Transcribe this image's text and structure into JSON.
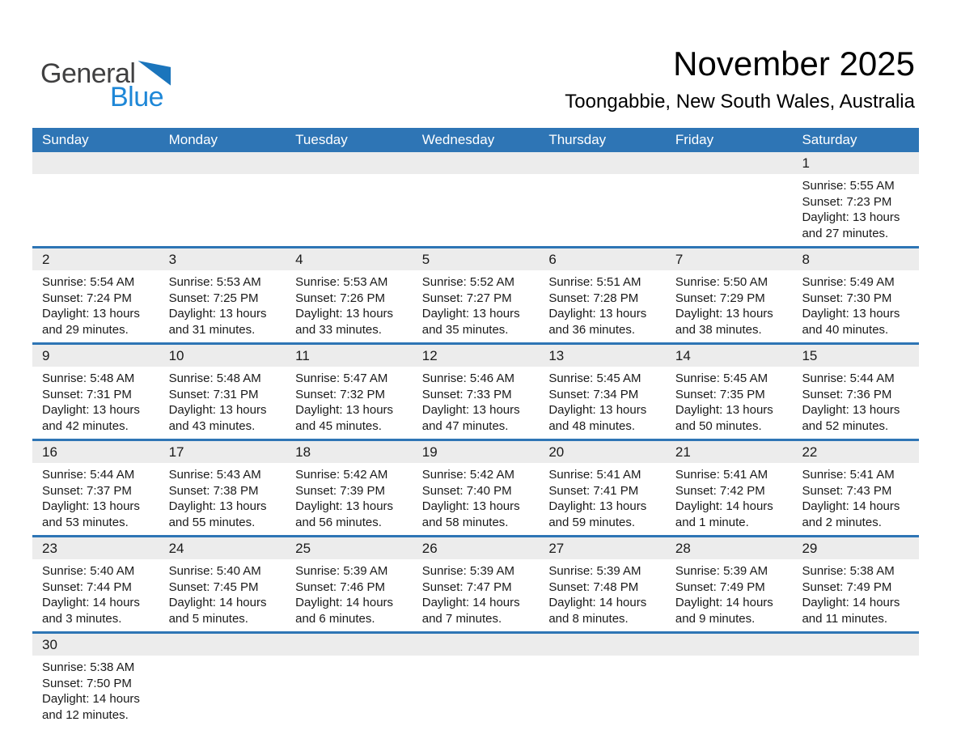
{
  "logo": {
    "general": "General",
    "blue": "Blue"
  },
  "header": {
    "title": "November 2025",
    "subtitle": "Toongabbie, New South Wales, Australia"
  },
  "colors": {
    "header_blue": "#2E75B5",
    "row_border": "#2E75B5",
    "date_strip": "#ECECEC",
    "logo_triangle": "#1B75BC",
    "logo_blue_text": "#1E87D7",
    "logo_dark_text": "#404041"
  },
  "calendar": {
    "weekdays": [
      "Sunday",
      "Monday",
      "Tuesday",
      "Wednesday",
      "Thursday",
      "Friday",
      "Saturday"
    ],
    "weeks": [
      [
        null,
        null,
        null,
        null,
        null,
        null,
        {
          "day": "1",
          "sunrise": "Sunrise: 5:55 AM",
          "sunset": "Sunset: 7:23 PM",
          "daylight": "Daylight: 13 hours and 27 minutes."
        }
      ],
      [
        {
          "day": "2",
          "sunrise": "Sunrise: 5:54 AM",
          "sunset": "Sunset: 7:24 PM",
          "daylight": "Daylight: 13 hours and 29 minutes."
        },
        {
          "day": "3",
          "sunrise": "Sunrise: 5:53 AM",
          "sunset": "Sunset: 7:25 PM",
          "daylight": "Daylight: 13 hours and 31 minutes."
        },
        {
          "day": "4",
          "sunrise": "Sunrise: 5:53 AM",
          "sunset": "Sunset: 7:26 PM",
          "daylight": "Daylight: 13 hours and 33 minutes."
        },
        {
          "day": "5",
          "sunrise": "Sunrise: 5:52 AM",
          "sunset": "Sunset: 7:27 PM",
          "daylight": "Daylight: 13 hours and 35 minutes."
        },
        {
          "day": "6",
          "sunrise": "Sunrise: 5:51 AM",
          "sunset": "Sunset: 7:28 PM",
          "daylight": "Daylight: 13 hours and 36 minutes."
        },
        {
          "day": "7",
          "sunrise": "Sunrise: 5:50 AM",
          "sunset": "Sunset: 7:29 PM",
          "daylight": "Daylight: 13 hours and 38 minutes."
        },
        {
          "day": "8",
          "sunrise": "Sunrise: 5:49 AM",
          "sunset": "Sunset: 7:30 PM",
          "daylight": "Daylight: 13 hours and 40 minutes."
        }
      ],
      [
        {
          "day": "9",
          "sunrise": "Sunrise: 5:48 AM",
          "sunset": "Sunset: 7:31 PM",
          "daylight": "Daylight: 13 hours and 42 minutes."
        },
        {
          "day": "10",
          "sunrise": "Sunrise: 5:48 AM",
          "sunset": "Sunset: 7:31 PM",
          "daylight": "Daylight: 13 hours and 43 minutes."
        },
        {
          "day": "11",
          "sunrise": "Sunrise: 5:47 AM",
          "sunset": "Sunset: 7:32 PM",
          "daylight": "Daylight: 13 hours and 45 minutes."
        },
        {
          "day": "12",
          "sunrise": "Sunrise: 5:46 AM",
          "sunset": "Sunset: 7:33 PM",
          "daylight": "Daylight: 13 hours and 47 minutes."
        },
        {
          "day": "13",
          "sunrise": "Sunrise: 5:45 AM",
          "sunset": "Sunset: 7:34 PM",
          "daylight": "Daylight: 13 hours and 48 minutes."
        },
        {
          "day": "14",
          "sunrise": "Sunrise: 5:45 AM",
          "sunset": "Sunset: 7:35 PM",
          "daylight": "Daylight: 13 hours and 50 minutes."
        },
        {
          "day": "15",
          "sunrise": "Sunrise: 5:44 AM",
          "sunset": "Sunset: 7:36 PM",
          "daylight": "Daylight: 13 hours and 52 minutes."
        }
      ],
      [
        {
          "day": "16",
          "sunrise": "Sunrise: 5:44 AM",
          "sunset": "Sunset: 7:37 PM",
          "daylight": "Daylight: 13 hours and 53 minutes."
        },
        {
          "day": "17",
          "sunrise": "Sunrise: 5:43 AM",
          "sunset": "Sunset: 7:38 PM",
          "daylight": "Daylight: 13 hours and 55 minutes."
        },
        {
          "day": "18",
          "sunrise": "Sunrise: 5:42 AM",
          "sunset": "Sunset: 7:39 PM",
          "daylight": "Daylight: 13 hours and 56 minutes."
        },
        {
          "day": "19",
          "sunrise": "Sunrise: 5:42 AM",
          "sunset": "Sunset: 7:40 PM",
          "daylight": "Daylight: 13 hours and 58 minutes."
        },
        {
          "day": "20",
          "sunrise": "Sunrise: 5:41 AM",
          "sunset": "Sunset: 7:41 PM",
          "daylight": "Daylight: 13 hours and 59 minutes."
        },
        {
          "day": "21",
          "sunrise": "Sunrise: 5:41 AM",
          "sunset": "Sunset: 7:42 PM",
          "daylight": "Daylight: 14 hours and 1 minute."
        },
        {
          "day": "22",
          "sunrise": "Sunrise: 5:41 AM",
          "sunset": "Sunset: 7:43 PM",
          "daylight": "Daylight: 14 hours and 2 minutes."
        }
      ],
      [
        {
          "day": "23",
          "sunrise": "Sunrise: 5:40 AM",
          "sunset": "Sunset: 7:44 PM",
          "daylight": "Daylight: 14 hours and 3 minutes."
        },
        {
          "day": "24",
          "sunrise": "Sunrise: 5:40 AM",
          "sunset": "Sunset: 7:45 PM",
          "daylight": "Daylight: 14 hours and 5 minutes."
        },
        {
          "day": "25",
          "sunrise": "Sunrise: 5:39 AM",
          "sunset": "Sunset: 7:46 PM",
          "daylight": "Daylight: 14 hours and 6 minutes."
        },
        {
          "day": "26",
          "sunrise": "Sunrise: 5:39 AM",
          "sunset": "Sunset: 7:47 PM",
          "daylight": "Daylight: 14 hours and 7 minutes."
        },
        {
          "day": "27",
          "sunrise": "Sunrise: 5:39 AM",
          "sunset": "Sunset: 7:48 PM",
          "daylight": "Daylight: 14 hours and 8 minutes."
        },
        {
          "day": "28",
          "sunrise": "Sunrise: 5:39 AM",
          "sunset": "Sunset: 7:49 PM",
          "daylight": "Daylight: 14 hours and 9 minutes."
        },
        {
          "day": "29",
          "sunrise": "Sunrise: 5:38 AM",
          "sunset": "Sunset: 7:49 PM",
          "daylight": "Daylight: 14 hours and 11 minutes."
        }
      ],
      [
        {
          "day": "30",
          "sunrise": "Sunrise: 5:38 AM",
          "sunset": "Sunset: 7:50 PM",
          "daylight": "Daylight: 14 hours and 12 minutes."
        },
        null,
        null,
        null,
        null,
        null,
        null
      ]
    ]
  }
}
